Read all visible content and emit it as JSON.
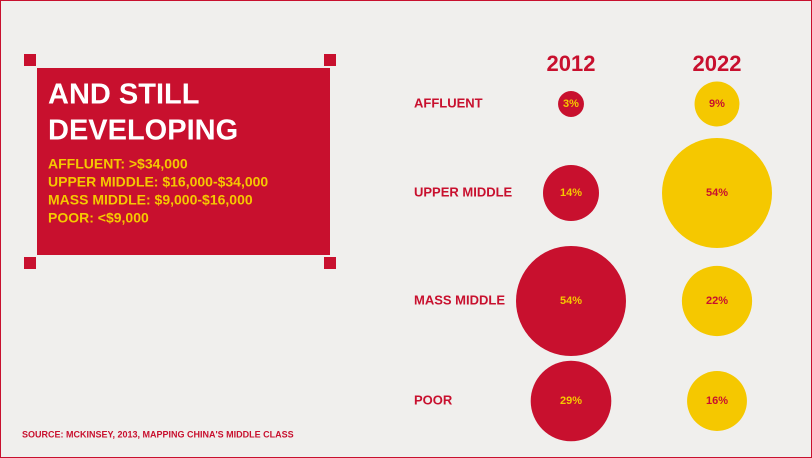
{
  "chart_data": {
    "type": "bubble",
    "title_lines": [
      "AND STILL",
      "DEVELOPING"
    ],
    "notes": [
      "AFFLUENT: >$34,000",
      "UPPER MIDDLE: $16,000-$34,000",
      "MASS MIDDLE: $9,000-$16,000",
      "POOR: <$9,000"
    ],
    "source": "SOURCE: MCKINSEY, 2013, MAPPING CHINA'S MIDDLE CLASS",
    "categories": [
      "AFFLUENT",
      "UPPER MIDDLE",
      "MASS MIDDLE",
      "POOR"
    ],
    "series": [
      {
        "name": "2012",
        "color": "#c8102e",
        "label_color": "#f5c800",
        "values": [
          3,
          14,
          54,
          29
        ],
        "value_labels": [
          "3%",
          "14%",
          "54%",
          "29%"
        ]
      },
      {
        "name": "2022",
        "color": "#f5c800",
        "label_color": "#c8102e",
        "values": [
          9,
          54,
          22,
          16
        ],
        "value_labels": [
          "9%",
          "54%",
          "22%",
          "16%"
        ]
      }
    ]
  }
}
